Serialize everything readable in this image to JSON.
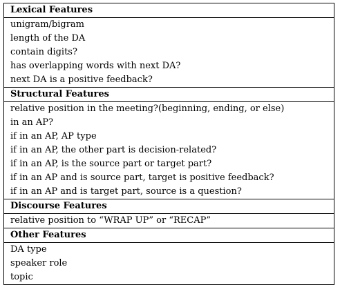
{
  "sections": [
    {
      "title": "Lexical Features",
      "items": [
        "unigram/bigram",
        "length of the DA",
        "contain digits?",
        "has overlapping words with next DA?",
        "next DA is a positive feedback?"
      ]
    },
    {
      "title": "Structural Features",
      "items": [
        "relative position in the meeting?(beginning, ending, or else)",
        "in an AP?",
        "if in an AP, AP type",
        "if in an AP, the other part is decision-related?",
        "if in an AP, is the source part or target part?",
        "if in an AP and is source part, target is positive feedback?",
        "if in an AP and is target part, source is a question?"
      ]
    },
    {
      "title": "Discourse Features",
      "items": [
        "relative position to “WRAP UP” or “RECAP”"
      ]
    },
    {
      "title": "Other Features",
      "items": [
        "DA type",
        "speaker role",
        "topic"
      ]
    }
  ]
}
